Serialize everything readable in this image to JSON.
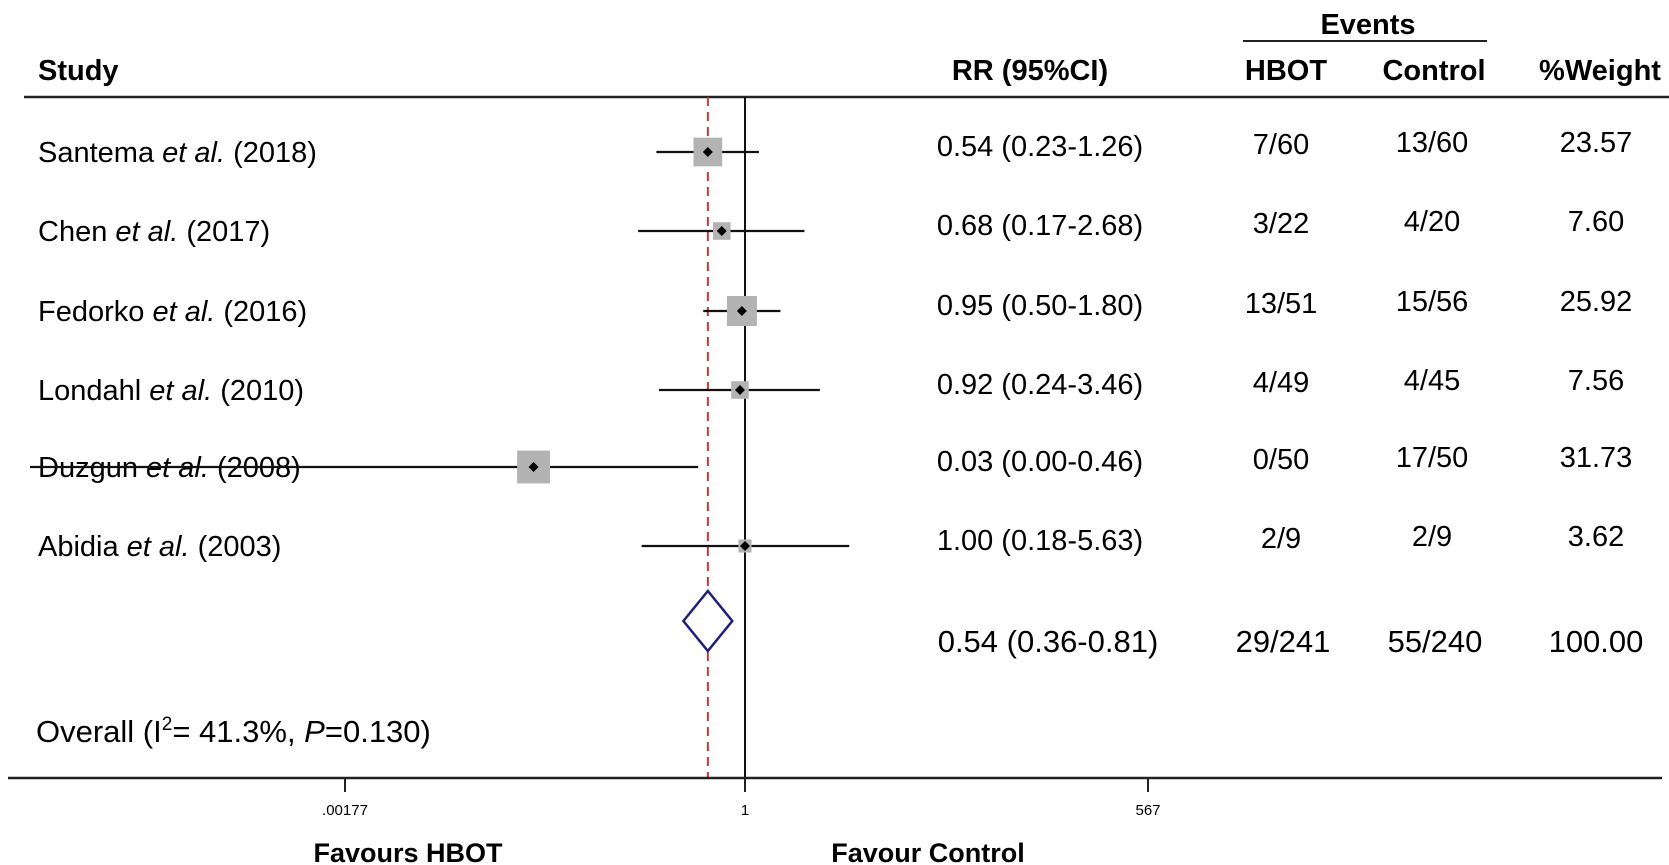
{
  "header": {
    "study": "Study",
    "rr": "RR (95%CI)",
    "events": "Events",
    "hbot": "HBOT",
    "control": "Control",
    "weight": "%Weight"
  },
  "chart_data": {
    "type": "forest",
    "scale": "log",
    "null_value": 1,
    "pooled_line": 0.54,
    "xlim": [
      0.00177,
      567
    ],
    "ticks": [
      {
        "value": 0.00177,
        "label": ".00177"
      },
      {
        "value": 1,
        "label": "1"
      },
      {
        "value": 567,
        "label": "567"
      }
    ],
    "studies": [
      {
        "author": "Santema",
        "etal": "et al.",
        "year": "(2018)",
        "rr": 0.54,
        "lo": 0.23,
        "hi": 1.26,
        "rr_text": "0.54 (0.23-1.26)",
        "hbot": "7/60",
        "control": "13/60",
        "weight": 23.57,
        "weight_text": "23.57"
      },
      {
        "author": "Chen",
        "etal": "et al.",
        "year": "(2017)",
        "rr": 0.68,
        "lo": 0.17,
        "hi": 2.68,
        "rr_text": "0.68 (0.17-2.68)",
        "hbot": "3/22",
        "control": "4/20",
        "weight": 7.6,
        "weight_text": "7.60"
      },
      {
        "author": "Fedorko",
        "etal": "et al.",
        "year": "(2016)",
        "rr": 0.95,
        "lo": 0.5,
        "hi": 1.8,
        "rr_text": "0.95 (0.50-1.80)",
        "hbot": "13/51",
        "control": "15/56",
        "weight": 25.92,
        "weight_text": "25.92"
      },
      {
        "author": "Londahl",
        "etal": "et al.",
        "year": "(2010)",
        "rr": 0.92,
        "lo": 0.24,
        "hi": 3.46,
        "rr_text": "0.92 (0.24-3.46)",
        "hbot": "4/49",
        "control": "4/45",
        "weight": 7.56,
        "weight_text": "7.56"
      },
      {
        "author": "Duzgun",
        "etal": "et al.",
        "year": "(2008)",
        "rr": 0.03,
        "lo": 0.0,
        "hi": 0.46,
        "rr_text": "0.03 (0.00-0.46)",
        "hbot": "0/50",
        "control": "17/50",
        "weight": 31.73,
        "weight_text": "31.73"
      },
      {
        "author": "Abidia",
        "etal": "et al.",
        "year": "(2003)",
        "rr": 1.0,
        "lo": 0.18,
        "hi": 5.63,
        "rr_text": "1.00 (0.18-5.63)",
        "hbot": "2/9",
        "control": "2/9",
        "weight": 3.62,
        "weight_text": "3.62"
      }
    ],
    "overall": {
      "rr": 0.54,
      "lo": 0.36,
      "hi": 0.81,
      "rr_text": "0.54 (0.36-0.81)",
      "hbot": "29/241",
      "control": "55/240",
      "weight_text": "100.00",
      "label_prefix": "Overall (I",
      "label_sup": "2",
      "label_mid": "= 41.3%, ",
      "label_p": "P",
      "label_end": "=0.130)"
    },
    "favours_left": "Favours HBOT",
    "favours_right": "Favour Control",
    "colors": {
      "ci_line": "#111111",
      "weight_box": "#b3b3b3",
      "point": "#000000",
      "diamond": "#1f1f7a",
      "pooled_line": "#c0393b"
    }
  }
}
